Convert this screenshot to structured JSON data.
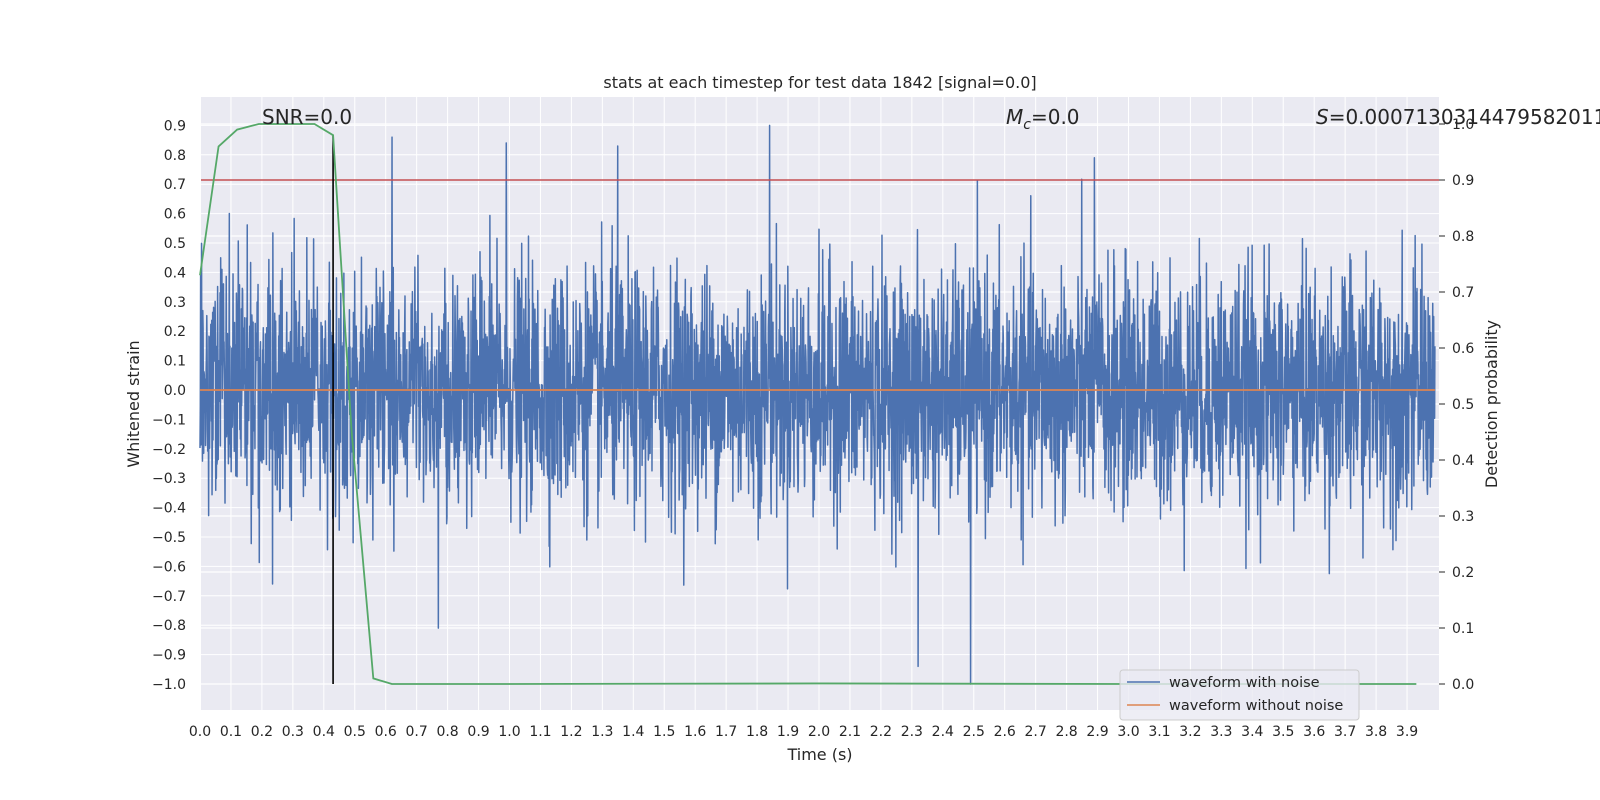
{
  "chart_data": {
    "type": "line",
    "title": "stats at each timestep for test data 1842 [signal=0.0]",
    "xlabel": "Time (s)",
    "ylabel": "Whitened strain",
    "y2label": "Detection probability",
    "xlim": [
      0.0,
      3.99
    ],
    "ylim": [
      -1.09,
      0.99
    ],
    "y2lim": [
      -0.05,
      1.05
    ],
    "x_ticks": [
      "0.0",
      "0.1",
      "0.2",
      "0.3",
      "0.4",
      "0.5",
      "0.6",
      "0.7",
      "0.8",
      "0.9",
      "1.0",
      "1.1",
      "1.2",
      "1.3",
      "1.4",
      "1.5",
      "1.6",
      "1.7",
      "1.8",
      "1.9",
      "2.0",
      "2.1",
      "2.2",
      "2.3",
      "2.4",
      "2.5",
      "2.6",
      "2.7",
      "2.8",
      "2.9",
      "3.0",
      "3.1",
      "3.2",
      "3.3",
      "3.4",
      "3.5",
      "3.6",
      "3.7",
      "3.8",
      "3.9"
    ],
    "y_ticks": [
      "0.9",
      "0.8",
      "0.7",
      "0.6",
      "0.5",
      "0.4",
      "0.3",
      "0.2",
      "0.1",
      "0.0",
      "−0.1",
      "−0.2",
      "−0.3",
      "−0.4",
      "−0.5",
      "−0.6",
      "−0.7",
      "−0.8",
      "−0.9",
      "−1.0"
    ],
    "y2_ticks": [
      "1.0",
      "0.9",
      "0.8",
      "0.7",
      "0.6",
      "0.5",
      "0.4",
      "0.3",
      "0.2",
      "0.1",
      "0.0"
    ],
    "grid": true,
    "legend": "lower-right",
    "annotations": {
      "snr": "SNR=0.0",
      "mc_symbol": "M",
      "mc_sub": "c",
      "mc_value": "=0.0",
      "s_symbol": "S",
      "s_value": "=0.0007130314479582011"
    },
    "series": [
      {
        "name": "waveform with noise",
        "axis": "left",
        "color": "#4c72b0",
        "description_points": "dense random noise roughly within [-1.0, 0.9]",
        "peaks": [
          [
            0.62,
            0.86
          ],
          [
            0.99,
            0.84
          ],
          [
            1.35,
            0.83
          ],
          [
            1.84,
            0.9
          ],
          [
            2.89,
            0.79
          ],
          [
            2.49,
            -1.0
          ],
          [
            2.32,
            -0.94
          ],
          [
            0.77,
            -0.81
          ]
        ]
      },
      {
        "name": "waveform without noise",
        "axis": "left",
        "color": "#dd8452",
        "x": [
          0.0,
          3.99
        ],
        "y": [
          0.0,
          0.0
        ]
      },
      {
        "axis": "right",
        "color": "#55a868",
        "x": [
          0.0,
          0.06,
          0.12,
          0.19,
          0.25,
          0.31,
          0.37,
          0.43,
          0.49,
          0.56,
          0.62,
          0.68,
          1.0,
          2.0,
          3.0,
          3.93
        ],
        "y": [
          0.73,
          0.96,
          0.99,
          1.0,
          1.0,
          1.0,
          1.0,
          0.98,
          0.45,
          0.01,
          0.0,
          0.0,
          0.0,
          0.001,
          0.0,
          0.0
        ]
      }
    ],
    "threshold_right": 0.9,
    "threshold_color": "#c44e52",
    "marker_time": 0.43
  }
}
